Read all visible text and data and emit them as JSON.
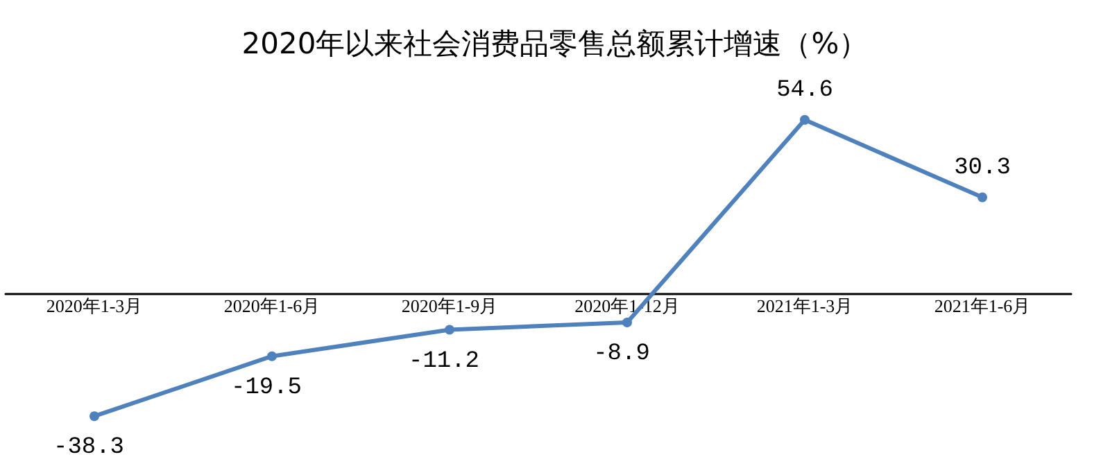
{
  "chart_data": {
    "type": "line",
    "title": "2020年以来社会消费品零售总额累计增速（%）",
    "categories": [
      "2020年1-3月",
      "2020年1-6月",
      "2020年1-9月",
      "2020年1-12月",
      "2021年1-3月",
      "2021年1-6月"
    ],
    "values": [
      -38.3,
      -19.5,
      -11.2,
      -8.9,
      54.6,
      30.3
    ],
    "color": "#4f81bd",
    "marker": "circle",
    "data_labels": true,
    "grid": false
  }
}
